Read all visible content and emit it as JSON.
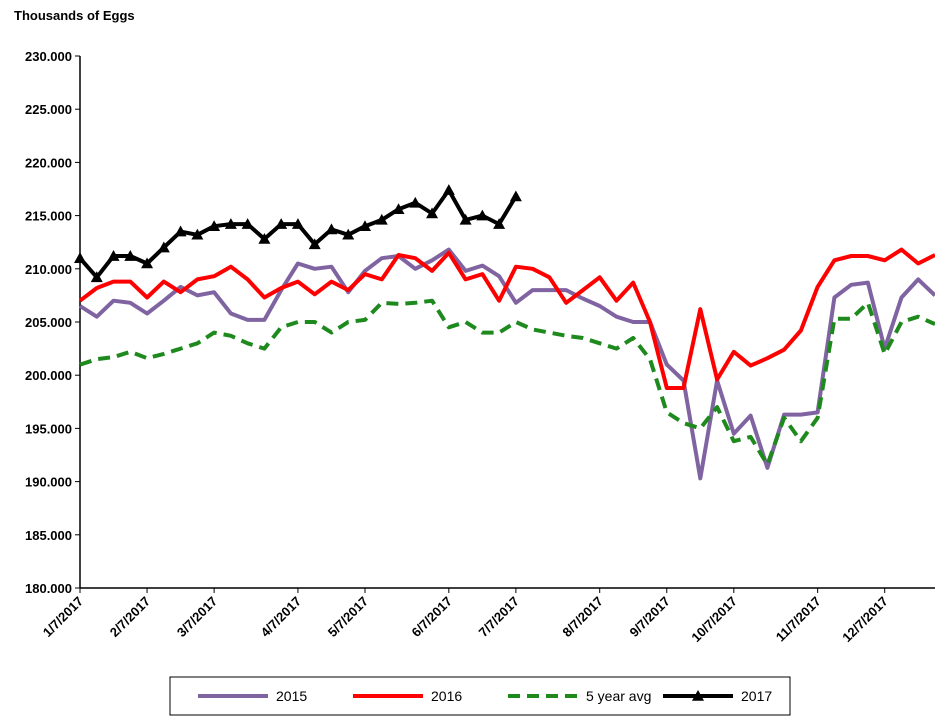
{
  "chart_data": {
    "type": "line",
    "y_axis_label": "Thousands of Eggs",
    "categories": [
      "1/7/2017",
      null,
      null,
      null,
      "2/7/2017",
      null,
      null,
      null,
      "3/7/2017",
      null,
      null,
      null,
      null,
      "4/7/2017",
      null,
      null,
      null,
      "5/7/2017",
      null,
      null,
      null,
      null,
      "6/7/2017",
      null,
      null,
      null,
      "7/7/2017",
      null,
      null,
      null,
      null,
      "8/7/2017",
      null,
      null,
      null,
      "9/7/2017",
      null,
      null,
      null,
      "10/7/2017",
      null,
      null,
      null,
      null,
      "11/7/2017",
      null,
      null,
      null,
      "12/7/2017",
      null,
      null,
      null
    ],
    "series": [
      {
        "name": "2015",
        "color": "#8064a2",
        "style": "solid",
        "marker": "none",
        "values": [
          206.5,
          205.5,
          207,
          206.8,
          205.8,
          207,
          208.3,
          207.5,
          207.8,
          205.8,
          205.2,
          205.2,
          208,
          210.5,
          210,
          210.2,
          207.8,
          209.8,
          211,
          211.2,
          210,
          210.8,
          211.8,
          209.8,
          210.3,
          209.3,
          206.8,
          208,
          208,
          208,
          207.2,
          206.5,
          205.5,
          205,
          205,
          201,
          199.5,
          190.3,
          199.5,
          194.5,
          196.2,
          191.3,
          196.3,
          196.3,
          196.5,
          207.3,
          208.5,
          208.7,
          202.5,
          207.3,
          209,
          207.5
        ]
      },
      {
        "name": "2016",
        "color": "#ff0000",
        "style": "solid",
        "marker": "none",
        "values": [
          207,
          208.2,
          208.8,
          208.8,
          207.3,
          208.8,
          207.8,
          209,
          209.3,
          210.2,
          209,
          207.3,
          208.2,
          208.8,
          207.6,
          208.8,
          208,
          209.5,
          209,
          211.3,
          211,
          209.8,
          211.5,
          209,
          209.5,
          207,
          210.2,
          210,
          209.2,
          206.8,
          208,
          209.2,
          207,
          208.7,
          205,
          198.8,
          198.8,
          206.2,
          199.6,
          202.2,
          200.9,
          201.6,
          202.4,
          204.2,
          208.3,
          210.8,
          211.2,
          211.2,
          210.8,
          211.8,
          210.5,
          211.3
        ]
      },
      {
        "name": "5 year avg",
        "color": "#1e8a1e",
        "style": "dashed",
        "marker": "none",
        "values": [
          201,
          201.5,
          201.7,
          202.2,
          201.6,
          202,
          202.5,
          203,
          204,
          203.7,
          203,
          202.5,
          204.5,
          205,
          205,
          204,
          205,
          205.2,
          206.8,
          206.7,
          206.8,
          207,
          204.5,
          205,
          204,
          204,
          205,
          204.3,
          204,
          203.7,
          203.5,
          203,
          202.5,
          203.5,
          201.5,
          196.5,
          195.5,
          195,
          197,
          193.8,
          194.2,
          191.6,
          196,
          193.8,
          196,
          205.3,
          205.3,
          206.8,
          202,
          205,
          205.5,
          204.8
        ]
      },
      {
        "name": "2017",
        "color": "#000000",
        "style": "solid",
        "marker": "triangle",
        "values": [
          211,
          209.2,
          211.2,
          211.2,
          210.5,
          212,
          213.5,
          213.2,
          214,
          214.2,
          214.2,
          212.8,
          214.2,
          214.2,
          212.3,
          213.7,
          213.2,
          214,
          214.6,
          215.6,
          216.2,
          215.2,
          217.4,
          214.6,
          215,
          214.2,
          216.8,
          null,
          null,
          null,
          null,
          null,
          null,
          null,
          null,
          null,
          null,
          null,
          null,
          null,
          null,
          null,
          null,
          null,
          null,
          null,
          null,
          null,
          null,
          null,
          null,
          null
        ]
      }
    ],
    "ylim": [
      180,
      230
    ],
    "yticks": [
      {
        "value": 180,
        "label": "180.000"
      },
      {
        "value": 185,
        "label": "185.000"
      },
      {
        "value": 190,
        "label": "190.000"
      },
      {
        "value": 195,
        "label": "195.000"
      },
      {
        "value": 200,
        "label": "200.000"
      },
      {
        "value": 205,
        "label": "205.000"
      },
      {
        "value": 210,
        "label": "210.000"
      },
      {
        "value": 215,
        "label": "215.000"
      },
      {
        "value": 220,
        "label": "220.000"
      },
      {
        "value": 225,
        "label": "225.000"
      },
      {
        "value": 230,
        "label": "230.000"
      }
    ],
    "grid": false,
    "legend": "bottom"
  }
}
